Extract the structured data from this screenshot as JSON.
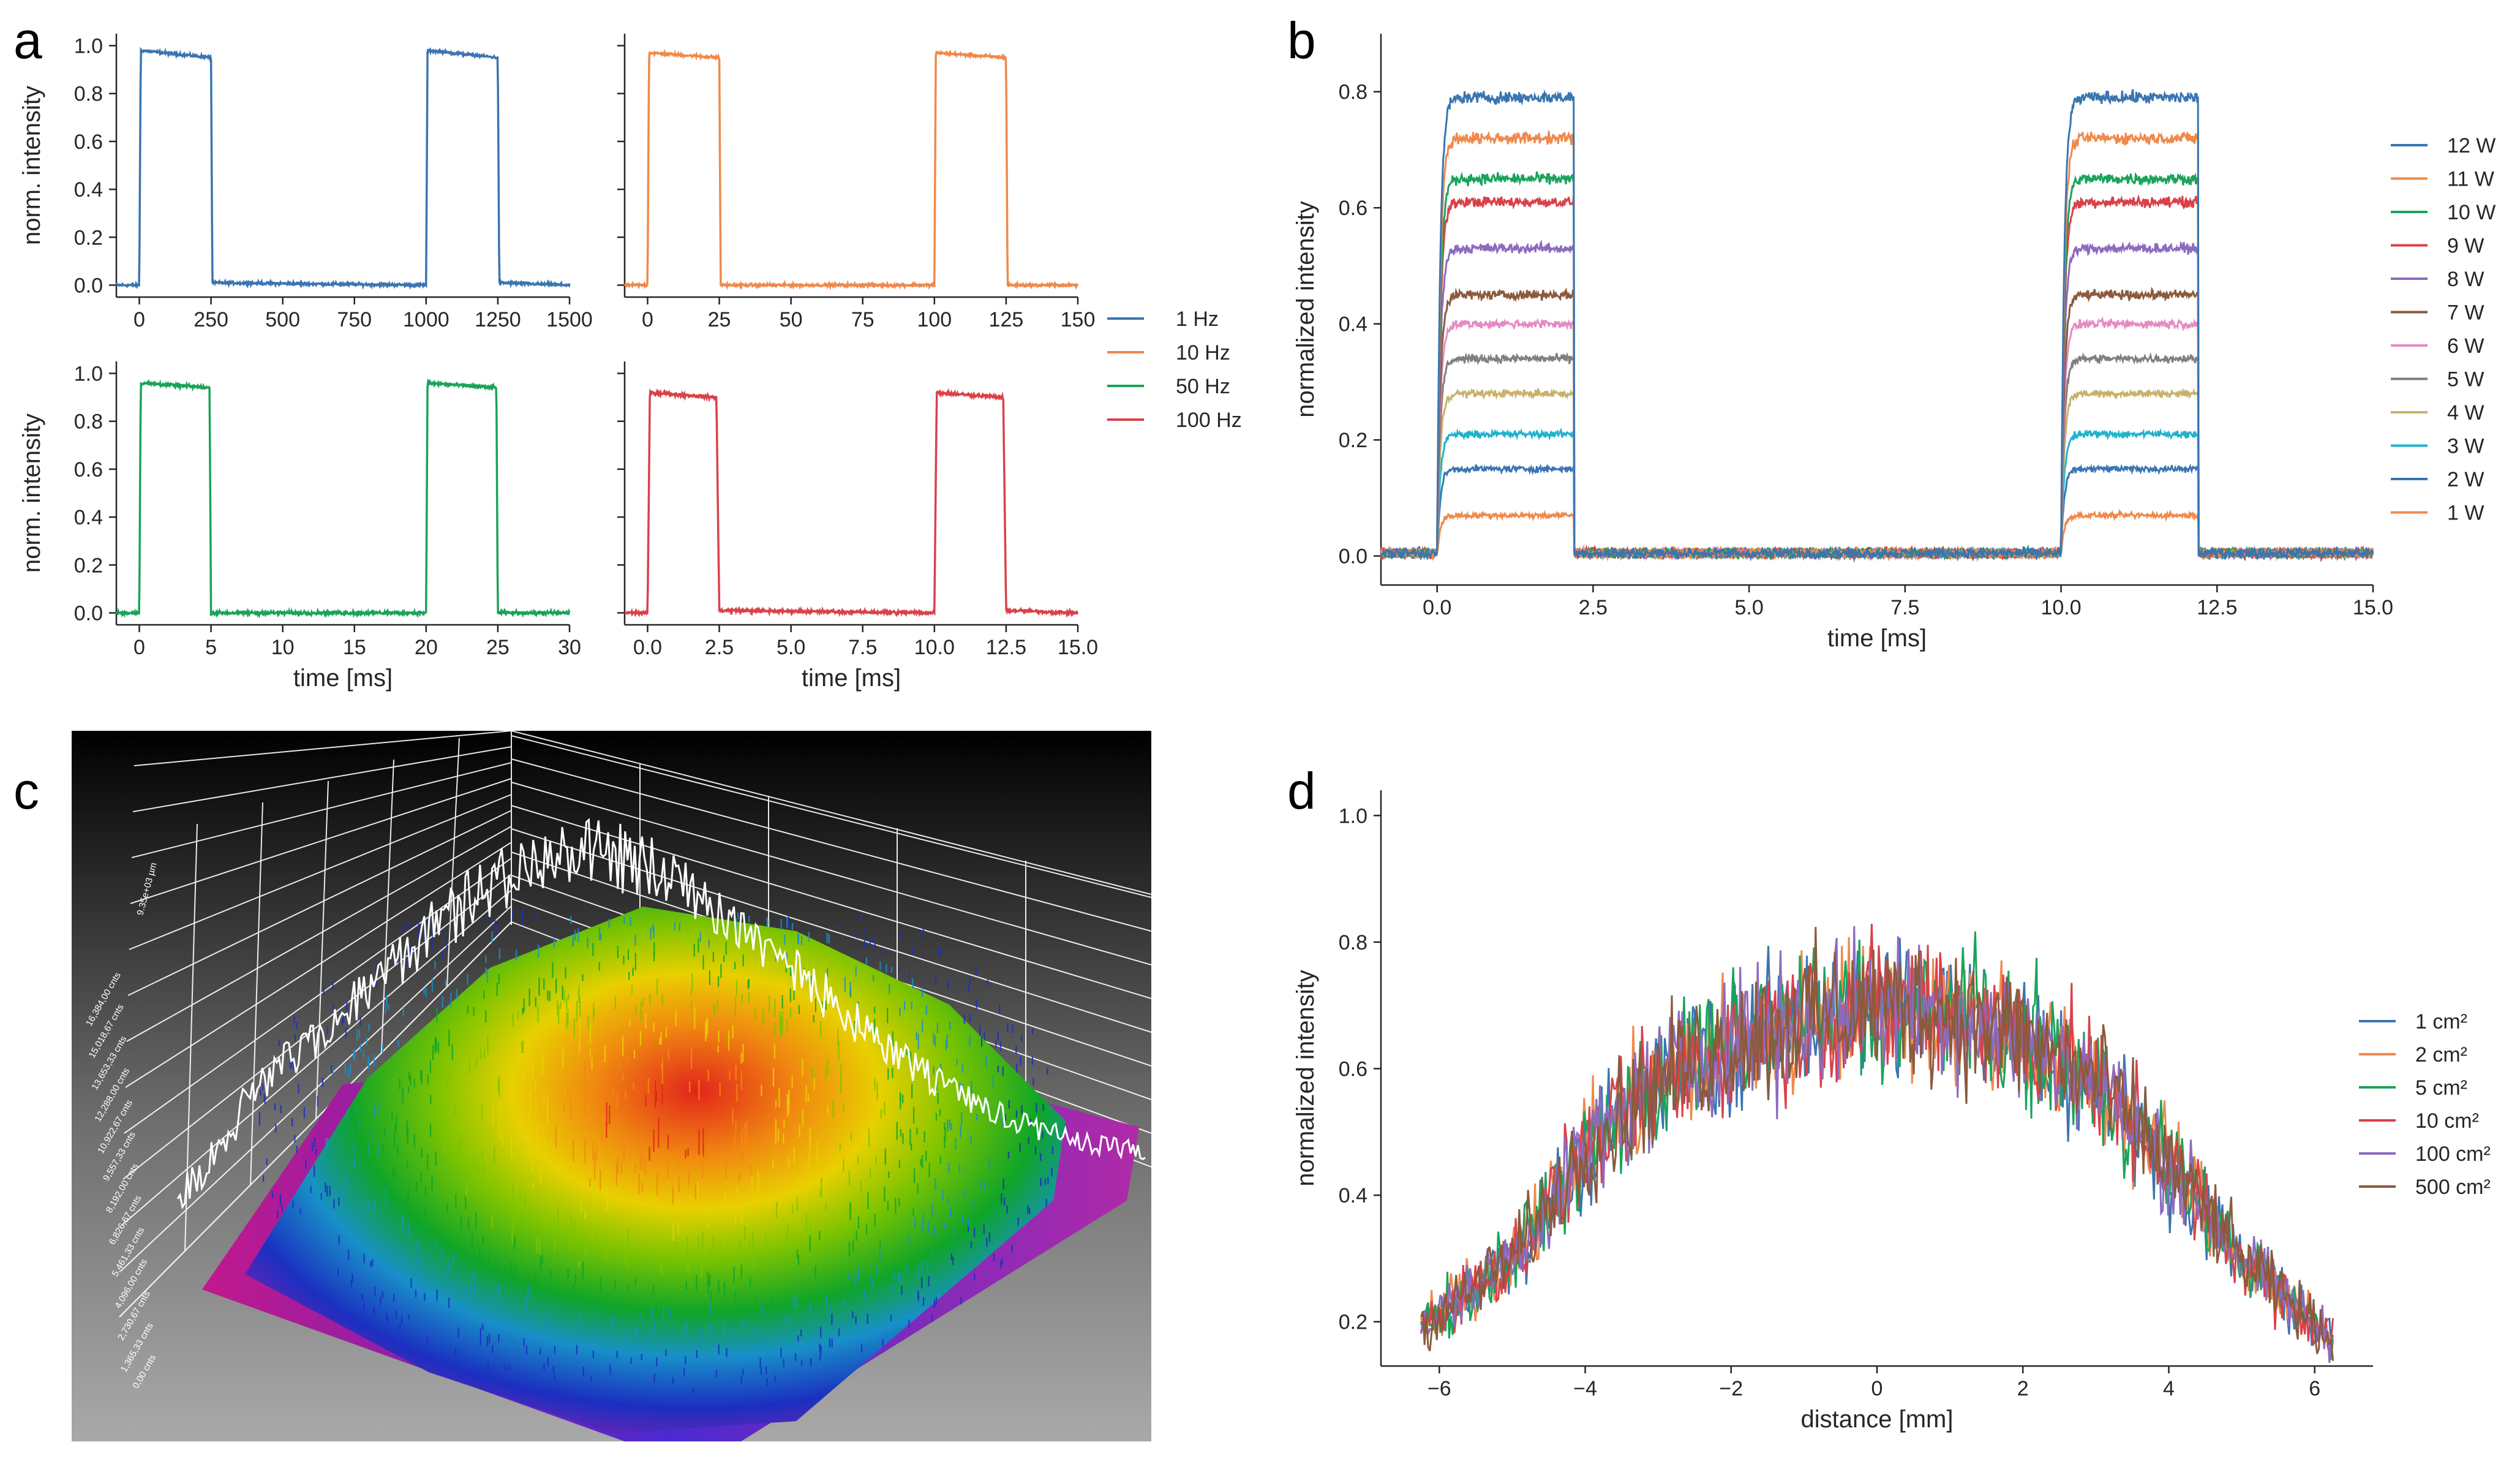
{
  "panels": {
    "a": "a",
    "b": "b",
    "c": "c",
    "d": "d"
  },
  "colors": {
    "blue": "#3a75b0",
    "orange": "#f0894a",
    "green": "#1aa35a",
    "red": "#d9414a",
    "purple": "#8c6bbf",
    "brown": "#8b5a3c",
    "pink": "#e68ac3",
    "gray": "#7f7f7f",
    "olive": "#c8b26a",
    "cyan": "#1fb3cc"
  },
  "chart_data": [
    {
      "id": "a1",
      "type": "line",
      "ylabel": "norm. intensity",
      "xlabel": "",
      "xlim": [
        -80,
        1500
      ],
      "ylim": [
        -0.05,
        1.05
      ],
      "xticks": [
        0,
        250,
        500,
        750,
        1000,
        1250,
        1500
      ],
      "xticklabels": [
        "0",
        "250",
        "500",
        "750",
        "1000",
        "1250",
        "1500"
      ],
      "yticks": [
        0.0,
        0.2,
        0.4,
        0.6,
        0.8,
        1.0
      ],
      "yticklabels": [
        "0.0",
        "0.2",
        "0.4",
        "0.6",
        "0.8",
        "1.0"
      ],
      "series": [
        {
          "name": "1 Hz",
          "color": "#3a75b0",
          "x": [
            -80,
            0,
            5,
            250,
            255,
            1000,
            1005,
            1250,
            1255,
            1500
          ],
          "y": [
            0.0,
            0.0,
            0.98,
            0.95,
            0.01,
            0.0,
            0.98,
            0.95,
            0.01,
            0.0
          ],
          "noise": 0.008
        }
      ]
    },
    {
      "id": "a2",
      "type": "line",
      "ylabel": "",
      "xlabel": "",
      "xlim": [
        -8,
        150
      ],
      "ylim": [
        -0.05,
        1.05
      ],
      "xticks": [
        0,
        25,
        50,
        75,
        100,
        125,
        150
      ],
      "xticklabels": [
        "0",
        "25",
        "50",
        "75",
        "100",
        "125",
        "150"
      ],
      "yticks": [
        0.0,
        0.2,
        0.4,
        0.6,
        0.8,
        1.0
      ],
      "yticklabels": [],
      "series": [
        {
          "name": "10 Hz",
          "color": "#f0894a",
          "x": [
            -8,
            0,
            0.5,
            25,
            25.5,
            100,
            100.5,
            125,
            125.5,
            150
          ],
          "y": [
            0.0,
            0.0,
            0.97,
            0.95,
            0.0,
            0.0,
            0.97,
            0.95,
            0.0,
            0.0
          ],
          "noise": 0.008
        }
      ]
    },
    {
      "id": "a3",
      "type": "line",
      "ylabel": "norm. intensity",
      "xlabel": "time [ms]",
      "xlim": [
        -1.6,
        30
      ],
      "ylim": [
        -0.05,
        1.05
      ],
      "xticks": [
        0,
        5,
        10,
        15,
        20,
        25,
        30
      ],
      "xticklabels": [
        "0",
        "5",
        "10",
        "15",
        "20",
        "25",
        "30"
      ],
      "yticks": [
        0.0,
        0.2,
        0.4,
        0.6,
        0.8,
        1.0
      ],
      "yticklabels": [
        "0.0",
        "0.2",
        "0.4",
        "0.6",
        "0.8",
        "1.0"
      ],
      "series": [
        {
          "name": "50 Hz",
          "color": "#1aa35a",
          "x": [
            -1.6,
            0,
            0.1,
            4.9,
            5.0,
            20,
            20.1,
            24.9,
            25.0,
            30
          ],
          "y": [
            0.0,
            0.0,
            0.96,
            0.94,
            0.0,
            0.0,
            0.96,
            0.94,
            0.0,
            0.0
          ],
          "noise": 0.01
        }
      ]
    },
    {
      "id": "a4",
      "type": "line",
      "ylabel": "",
      "xlabel": "time [ms]",
      "xlim": [
        -0.8,
        15
      ],
      "ylim": [
        -0.05,
        1.05
      ],
      "xticks": [
        0.0,
        2.5,
        5.0,
        7.5,
        10.0,
        12.5,
        15.0
      ],
      "xticklabels": [
        "0.0",
        "2.5",
        "5.0",
        "7.5",
        "10.0",
        "12.5",
        "15.0"
      ],
      "yticks": [
        0.0,
        0.2,
        0.4,
        0.6,
        0.8,
        1.0
      ],
      "yticklabels": [],
      "series": [
        {
          "name": "100 Hz",
          "color": "#d9414a",
          "x": [
            -0.8,
            0,
            0.08,
            2.4,
            2.5,
            10,
            10.08,
            12.4,
            12.5,
            15
          ],
          "y": [
            0.0,
            0.0,
            0.92,
            0.9,
            0.01,
            0.0,
            0.92,
            0.9,
            0.01,
            0.0
          ],
          "noise": 0.01
        }
      ]
    },
    {
      "id": "b",
      "type": "line",
      "ylabel": "normalized intensity",
      "xlabel": "time [ms]",
      "xlim": [
        -0.9,
        15.0
      ],
      "ylim": [
        -0.05,
        0.9
      ],
      "xticks": [
        0.0,
        2.5,
        5.0,
        7.5,
        10.0,
        12.5,
        15.0
      ],
      "xticklabels": [
        "0.0",
        "2.5",
        "5.0",
        "7.5",
        "10.0",
        "12.5",
        "15.0"
      ],
      "yticks": [
        0.0,
        0.2,
        0.4,
        0.6,
        0.8
      ],
      "yticklabels": [
        "0.0",
        "0.2",
        "0.4",
        "0.6",
        "0.8"
      ],
      "pulses": [
        [
          0.0,
          2.2
        ],
        [
          10.0,
          12.2
        ]
      ],
      "series": [
        {
          "name": "12 W",
          "color": "#3a75b0",
          "level": 0.79
        },
        {
          "name": "11 W",
          "color": "#f0894a",
          "level": 0.72
        },
        {
          "name": "10 W",
          "color": "#1aa35a",
          "level": 0.65
        },
        {
          "name": "9 W",
          "color": "#d9414a",
          "level": 0.61
        },
        {
          "name": "8 W",
          "color": "#8c6bbf",
          "level": 0.53
        },
        {
          "name": "7 W",
          "color": "#8b5a3c",
          "level": 0.45
        },
        {
          "name": "6 W",
          "color": "#e68ac3",
          "level": 0.4
        },
        {
          "name": "5 W",
          "color": "#7f7f7f",
          "level": 0.34
        },
        {
          "name": "4 W",
          "color": "#c8b26a",
          "level": 0.28
        },
        {
          "name": "3 W",
          "color": "#1fb3cc",
          "level": 0.21
        },
        {
          "name": "2 W",
          "color": "#3a75b0",
          "level": 0.15
        },
        {
          "name": "1 W",
          "color": "#f0894a",
          "level": 0.07
        }
      ]
    },
    {
      "id": "d",
      "type": "line",
      "ylabel": "normalized intensity",
      "xlabel": "distance [mm]",
      "xlim": [
        -6.8,
        6.8
      ],
      "ylim": [
        0.13,
        1.04
      ],
      "xticks": [
        -6,
        -4,
        -2,
        0,
        2,
        4,
        6
      ],
      "xticklabels": [
        "−6",
        "−4",
        "−2",
        "0",
        "2",
        "4",
        "6"
      ],
      "yticks": [
        0.2,
        0.4,
        0.6,
        0.8,
        1.0
      ],
      "yticklabels": [
        "0.2",
        "0.4",
        "0.6",
        "0.8",
        "1.0"
      ],
      "x_range": [
        -6.25,
        6.25
      ],
      "profile": {
        "x": [
          -6.25,
          -5,
          -4,
          -3,
          -2,
          -1,
          0,
          1,
          2,
          3,
          4,
          5,
          6.25
        ],
        "y": [
          0.19,
          0.3,
          0.47,
          0.58,
          0.64,
          0.68,
          0.7,
          0.69,
          0.65,
          0.58,
          0.45,
          0.3,
          0.17
        ]
      },
      "series": [
        {
          "name": "1 cm²",
          "color": "#3a75b0"
        },
        {
          "name": "2 cm²",
          "color": "#f0894a"
        },
        {
          "name": "5 cm²",
          "color": "#1aa35a"
        },
        {
          "name": "10 cm²",
          "color": "#d9414a"
        },
        {
          "name": "100 cm²",
          "color": "#8c6bbf"
        },
        {
          "name": "500 cm²",
          "color": "#8b5a3c"
        }
      ]
    }
  ],
  "legend_a": [
    "1 Hz",
    "10 Hz",
    "50 Hz",
    "100 Hz"
  ],
  "surface": {
    "z_labels": [
      "0,00 cnts",
      "1,365,33 cnts",
      "2,730,67 cnts",
      "4,096,00 cnts",
      "5,461,33 cnts",
      "6,826,67 cnts",
      "8,192,00 cnts",
      "9,557,33 cnts",
      "10,922,67 cnts",
      "12,288,00 cnts",
      "13,653,33 cnts",
      "15,018,67 cnts",
      "16,384,00 cnts"
    ],
    "axis_unit_label": "9.35e+03 µm"
  }
}
